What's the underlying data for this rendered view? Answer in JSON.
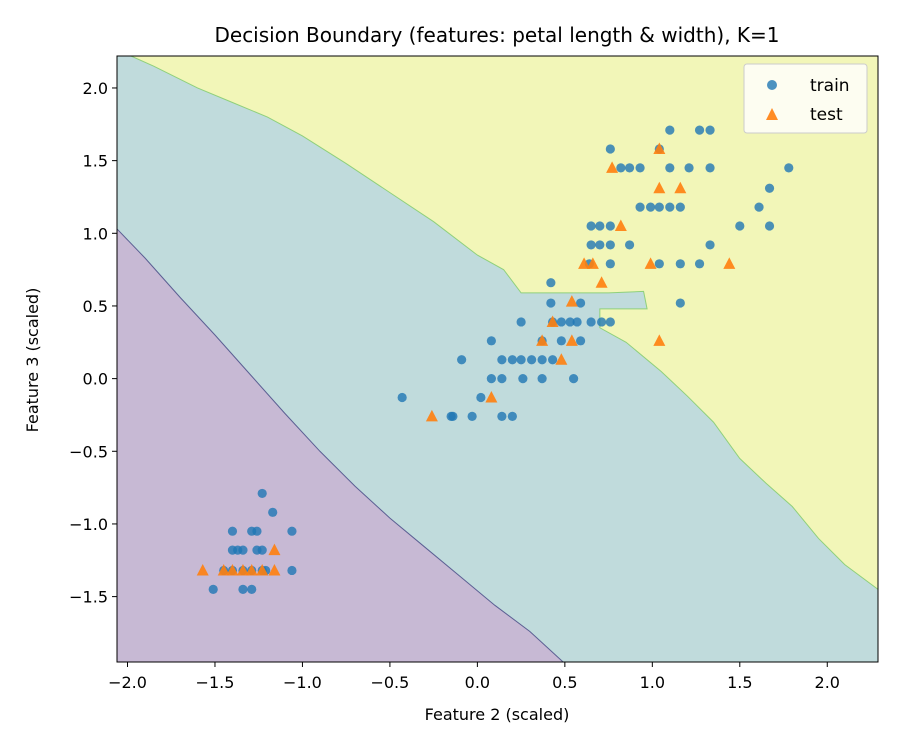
{
  "chart_data": {
    "type": "scatter",
    "title": "Decision Boundary (features: petal length & width), K=1",
    "xlabel": "Feature 2 (scaled)",
    "ylabel": "Feature 3 (scaled)",
    "xlim": [
      -2.06,
      2.29
    ],
    "ylim": [
      -1.95,
      2.22
    ],
    "xticks": [
      -2.0,
      -1.5,
      -1.0,
      -0.5,
      0.0,
      0.5,
      1.0,
      1.5,
      2.0
    ],
    "xtick_labels": [
      "−2.0",
      "−1.5",
      "−1.0",
      "−0.5",
      "0.0",
      "0.5",
      "1.0",
      "1.5",
      "2.0"
    ],
    "yticks": [
      -1.5,
      -1.0,
      -0.5,
      0.0,
      0.5,
      1.0,
      1.5,
      2.0
    ],
    "ytick_labels": [
      "−1.5",
      "−1.0",
      "−0.5",
      "0.0",
      "0.5",
      "1.0",
      "1.5",
      "2.0"
    ],
    "grid": false,
    "legend_position": "top-right",
    "colors": {
      "region_class0": "#c7b9d4",
      "region_class1": "#c0dbdc",
      "region_class2": "#f2f6b8",
      "boundary_01": "#5b5f93",
      "boundary_12": "#8fd07b",
      "train": "#1f77b4",
      "test": "#ff7f0e"
    },
    "regions": {
      "class0_boundary": [
        [
          -2.06,
          1.03
        ],
        [
          -1.9,
          0.83
        ],
        [
          -1.7,
          0.56
        ],
        [
          -1.5,
          0.3
        ],
        [
          -1.3,
          0.03
        ],
        [
          -1.1,
          -0.24
        ],
        [
          -0.9,
          -0.5
        ],
        [
          -0.7,
          -0.74
        ],
        [
          -0.5,
          -0.96
        ],
        [
          -0.3,
          -1.16
        ],
        [
          -0.1,
          -1.36
        ],
        [
          0.1,
          -1.56
        ],
        [
          0.3,
          -1.74
        ],
        [
          0.49,
          -1.95
        ]
      ],
      "class2_boundary": [
        [
          -1.98,
          2.22
        ],
        [
          -1.85,
          2.15
        ],
        [
          -1.6,
          2.0
        ],
        [
          -1.4,
          1.9
        ],
        [
          -1.2,
          1.8
        ],
        [
          -1.0,
          1.67
        ],
        [
          -0.75,
          1.48
        ],
        [
          -0.5,
          1.28
        ],
        [
          -0.25,
          1.08
        ],
        [
          0.0,
          0.85
        ],
        [
          0.15,
          0.75
        ],
        [
          0.25,
          0.59
        ],
        [
          0.75,
          0.59
        ],
        [
          0.95,
          0.6
        ],
        [
          0.97,
          0.48
        ],
        [
          0.7,
          0.48
        ],
        [
          0.7,
          0.35
        ],
        [
          0.85,
          0.25
        ],
        [
          1.05,
          0.05
        ],
        [
          1.2,
          -0.12
        ],
        [
          1.35,
          -0.3
        ],
        [
          1.5,
          -0.55
        ],
        [
          1.65,
          -0.72
        ],
        [
          1.8,
          -0.88
        ],
        [
          1.95,
          -1.1
        ],
        [
          2.1,
          -1.28
        ],
        [
          2.29,
          -1.45
        ]
      ]
    },
    "series": [
      {
        "name": "train",
        "marker": "circle",
        "points": [
          [
            -1.4,
            -1.05
          ],
          [
            -1.29,
            -1.05
          ],
          [
            -1.26,
            -1.05
          ],
          [
            -1.06,
            -1.05
          ],
          [
            -1.34,
            -1.18
          ],
          [
            -1.4,
            -1.18
          ],
          [
            -1.23,
            -1.18
          ],
          [
            -1.17,
            -0.92
          ],
          [
            -1.23,
            -0.79
          ],
          [
            -1.51,
            -1.45
          ],
          [
            -1.34,
            -1.45
          ],
          [
            -1.29,
            -1.45
          ],
          [
            -1.45,
            -1.32
          ],
          [
            -1.4,
            -1.32
          ],
          [
            -1.34,
            -1.32
          ],
          [
            -1.29,
            -1.32
          ],
          [
            -1.23,
            -1.32
          ],
          [
            -1.21,
            -1.32
          ],
          [
            -1.06,
            -1.32
          ],
          [
            -1.37,
            -1.18
          ],
          [
            -1.26,
            -1.18
          ],
          [
            -0.43,
            -0.13
          ],
          [
            -0.15,
            -0.26
          ],
          [
            -0.14,
            -0.26
          ],
          [
            -0.03,
            -0.26
          ],
          [
            0.14,
            -0.26
          ],
          [
            0.2,
            -0.26
          ],
          [
            -0.09,
            0.13
          ],
          [
            0.02,
            -0.13
          ],
          [
            0.08,
            0.0
          ],
          [
            0.14,
            0.0
          ],
          [
            0.26,
            0.0
          ],
          [
            0.37,
            0.0
          ],
          [
            0.55,
            0.0
          ],
          [
            0.14,
            0.13
          ],
          [
            0.2,
            0.13
          ],
          [
            0.25,
            0.13
          ],
          [
            0.31,
            0.13
          ],
          [
            0.37,
            0.13
          ],
          [
            0.43,
            0.13
          ],
          [
            0.08,
            0.26
          ],
          [
            0.25,
            0.39
          ],
          [
            0.37,
            0.26
          ],
          [
            0.43,
            0.39
          ],
          [
            0.48,
            0.39
          ],
          [
            0.53,
            0.39
          ],
          [
            0.57,
            0.39
          ],
          [
            0.48,
            0.26
          ],
          [
            0.59,
            0.26
          ],
          [
            0.42,
            0.52
          ],
          [
            0.42,
            0.66
          ],
          [
            0.59,
            0.52
          ],
          [
            0.65,
            0.39
          ],
          [
            0.71,
            0.39
          ],
          [
            0.76,
            0.39
          ],
          [
            0.76,
            0.79
          ],
          [
            0.64,
            0.79
          ],
          [
            0.65,
            0.92
          ],
          [
            0.7,
            0.92
          ],
          [
            0.76,
            0.92
          ],
          [
            0.65,
            1.05
          ],
          [
            0.7,
            1.05
          ],
          [
            0.76,
            1.05
          ],
          [
            0.76,
            1.58
          ],
          [
            0.82,
            1.45
          ],
          [
            0.87,
            1.45
          ],
          [
            0.93,
            1.45
          ],
          [
            0.87,
            0.92
          ],
          [
            0.93,
            1.18
          ],
          [
            0.99,
            1.18
          ],
          [
            1.04,
            1.18
          ],
          [
            1.1,
            1.18
          ],
          [
            1.04,
            1.58
          ],
          [
            1.1,
            1.45
          ],
          [
            1.1,
            1.71
          ],
          [
            1.21,
            1.45
          ],
          [
            1.27,
            1.71
          ],
          [
            1.33,
            1.71
          ],
          [
            1.33,
            1.45
          ],
          [
            1.16,
            1.18
          ],
          [
            1.04,
            0.79
          ],
          [
            1.16,
            0.79
          ],
          [
            1.27,
            0.79
          ],
          [
            1.33,
            0.92
          ],
          [
            1.16,
            0.52
          ],
          [
            1.5,
            1.05
          ],
          [
            1.61,
            1.18
          ],
          [
            1.67,
            1.31
          ],
          [
            1.67,
            1.05
          ],
          [
            1.78,
            1.45
          ]
        ]
      },
      {
        "name": "test",
        "marker": "triangle",
        "points": [
          [
            -1.57,
            -1.32
          ],
          [
            -1.45,
            -1.32
          ],
          [
            -1.4,
            -1.32
          ],
          [
            -1.34,
            -1.32
          ],
          [
            -1.29,
            -1.32
          ],
          [
            -1.23,
            -1.32
          ],
          [
            -1.16,
            -1.32
          ],
          [
            -1.16,
            -1.18
          ],
          [
            -0.26,
            -0.26
          ],
          [
            0.08,
            -0.13
          ],
          [
            0.37,
            0.26
          ],
          [
            0.43,
            0.39
          ],
          [
            0.48,
            0.13
          ],
          [
            0.54,
            0.26
          ],
          [
            0.54,
            0.53
          ],
          [
            0.61,
            0.79
          ],
          [
            0.66,
            0.79
          ],
          [
            0.71,
            0.66
          ],
          [
            0.77,
            1.45
          ],
          [
            0.82,
            1.05
          ],
          [
            0.99,
            0.79
          ],
          [
            1.04,
            1.58
          ],
          [
            1.04,
            1.31
          ],
          [
            1.04,
            0.26
          ],
          [
            1.16,
            1.31
          ],
          [
            1.44,
            0.79
          ]
        ]
      }
    ]
  }
}
